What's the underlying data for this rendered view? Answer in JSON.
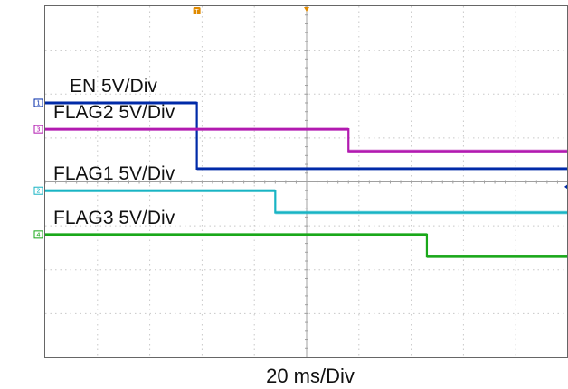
{
  "chart_data": {
    "type": "line",
    "x_units": "divisions",
    "xlim": [
      0,
      10
    ],
    "xlabel": "20 ms/Div",
    "grid": true,
    "series": [
      {
        "name": "EN 5V/Div",
        "color": "#002aa8",
        "channel": "1",
        "low_level": -1.8,
        "high_level": -0.3,
        "step_at": 2.9
      },
      {
        "name": "FLAG1 5V/Div",
        "color": "#18b4c4",
        "channel": "2",
        "low_level": 0.2,
        "high_level": 0.7,
        "step_at": 4.4
      },
      {
        "name": "FLAG2 5V/Div",
        "color": "#b21ab0",
        "channel": "3",
        "low_level": -1.2,
        "high_level": -0.7,
        "step_at": 5.8
      },
      {
        "name": "FLAG3 5V/Div",
        "color": "#1aa81a",
        "channel": "4",
        "low_level": 1.2,
        "high_level": 1.7,
        "step_at": 7.3
      }
    ],
    "markers": [
      {
        "type": "trigger",
        "symbol": "T",
        "color": "#e08a00",
        "x": 2.9
      },
      {
        "type": "trigger-position",
        "color": "#e08a00",
        "x": 5.0
      }
    ]
  }
}
